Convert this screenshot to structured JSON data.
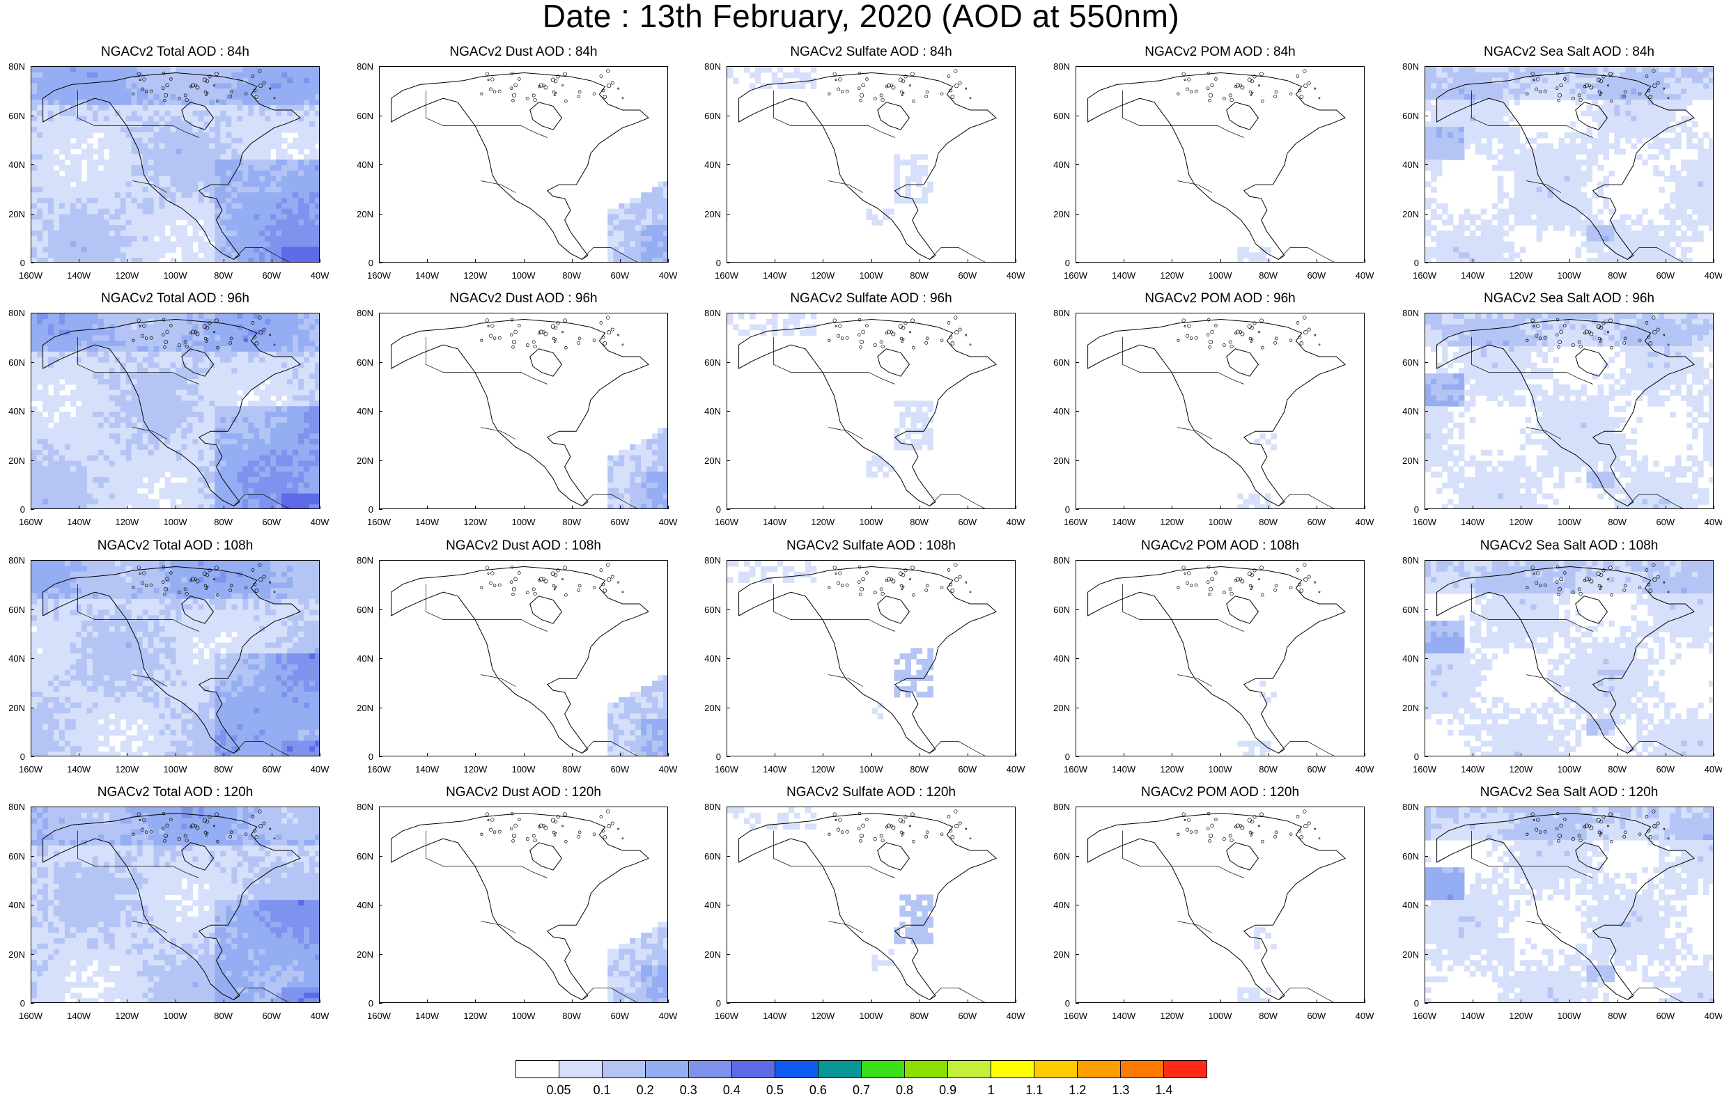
{
  "title": "Date : 13th February, 2020 (AOD at 550nm)",
  "lat_labels": [
    "80N",
    "60N",
    "40N",
    "20N",
    "0"
  ],
  "lon_labels": [
    "160W",
    "140W",
    "120W",
    "100W",
    "80W",
    "60W",
    "40W"
  ],
  "panels": [
    [
      {
        "title": "NGACv2 Total AOD : 84h",
        "type": "total"
      },
      {
        "title": "NGACv2 Dust AOD : 84h",
        "type": "dust"
      },
      {
        "title": "NGACv2 Sulfate AOD : 84h",
        "type": "sulfate"
      },
      {
        "title": "NGACv2 POM AOD : 84h",
        "type": "pom"
      },
      {
        "title": "NGACv2 Sea Salt AOD : 84h",
        "type": "seasalt"
      }
    ],
    [
      {
        "title": "NGACv2 Total AOD : 96h",
        "type": "total"
      },
      {
        "title": "NGACv2 Dust AOD : 96h",
        "type": "dust"
      },
      {
        "title": "NGACv2 Sulfate AOD : 96h",
        "type": "sulfate"
      },
      {
        "title": "NGACv2 POM AOD : 96h",
        "type": "pom"
      },
      {
        "title": "NGACv2 Sea Salt AOD : 96h",
        "type": "seasalt"
      }
    ],
    [
      {
        "title": "NGACv2 Total AOD : 108h",
        "type": "total"
      },
      {
        "title": "NGACv2 Dust AOD : 108h",
        "type": "dust"
      },
      {
        "title": "NGACv2 Sulfate AOD : 108h",
        "type": "sulfate"
      },
      {
        "title": "NGACv2 POM AOD : 108h",
        "type": "pom"
      },
      {
        "title": "NGACv2 Sea Salt AOD : 108h",
        "type": "seasalt"
      }
    ],
    [
      {
        "title": "NGACv2 Total AOD : 120h",
        "type": "total"
      },
      {
        "title": "NGACv2 Dust AOD : 120h",
        "type": "dust"
      },
      {
        "title": "NGACv2 Sulfate AOD : 120h",
        "type": "sulfate"
      },
      {
        "title": "NGACv2 POM AOD : 120h",
        "type": "pom"
      },
      {
        "title": "NGACv2 Sea Salt  AOD : 120h",
        "type": "seasalt"
      }
    ]
  ],
  "colorbar": {
    "colors": [
      "#ffffff",
      "#d6e0fa",
      "#b4c5f5",
      "#95adf2",
      "#7f92ee",
      "#5e6ae6",
      "#0f5cf2",
      "#089696",
      "#38e018",
      "#8ce000",
      "#c5ef3c",
      "#ffff00",
      "#ffcc00",
      "#ff9e00",
      "#ff7a00",
      "#ff2b15"
    ],
    "labels": [
      "0.05",
      "0.1",
      "0.2",
      "0.3",
      "0.4",
      "0.5",
      "0.6",
      "0.7",
      "0.8",
      "0.9",
      "1",
      "1.1",
      "1.2",
      "1.3",
      "1.4"
    ]
  }
}
